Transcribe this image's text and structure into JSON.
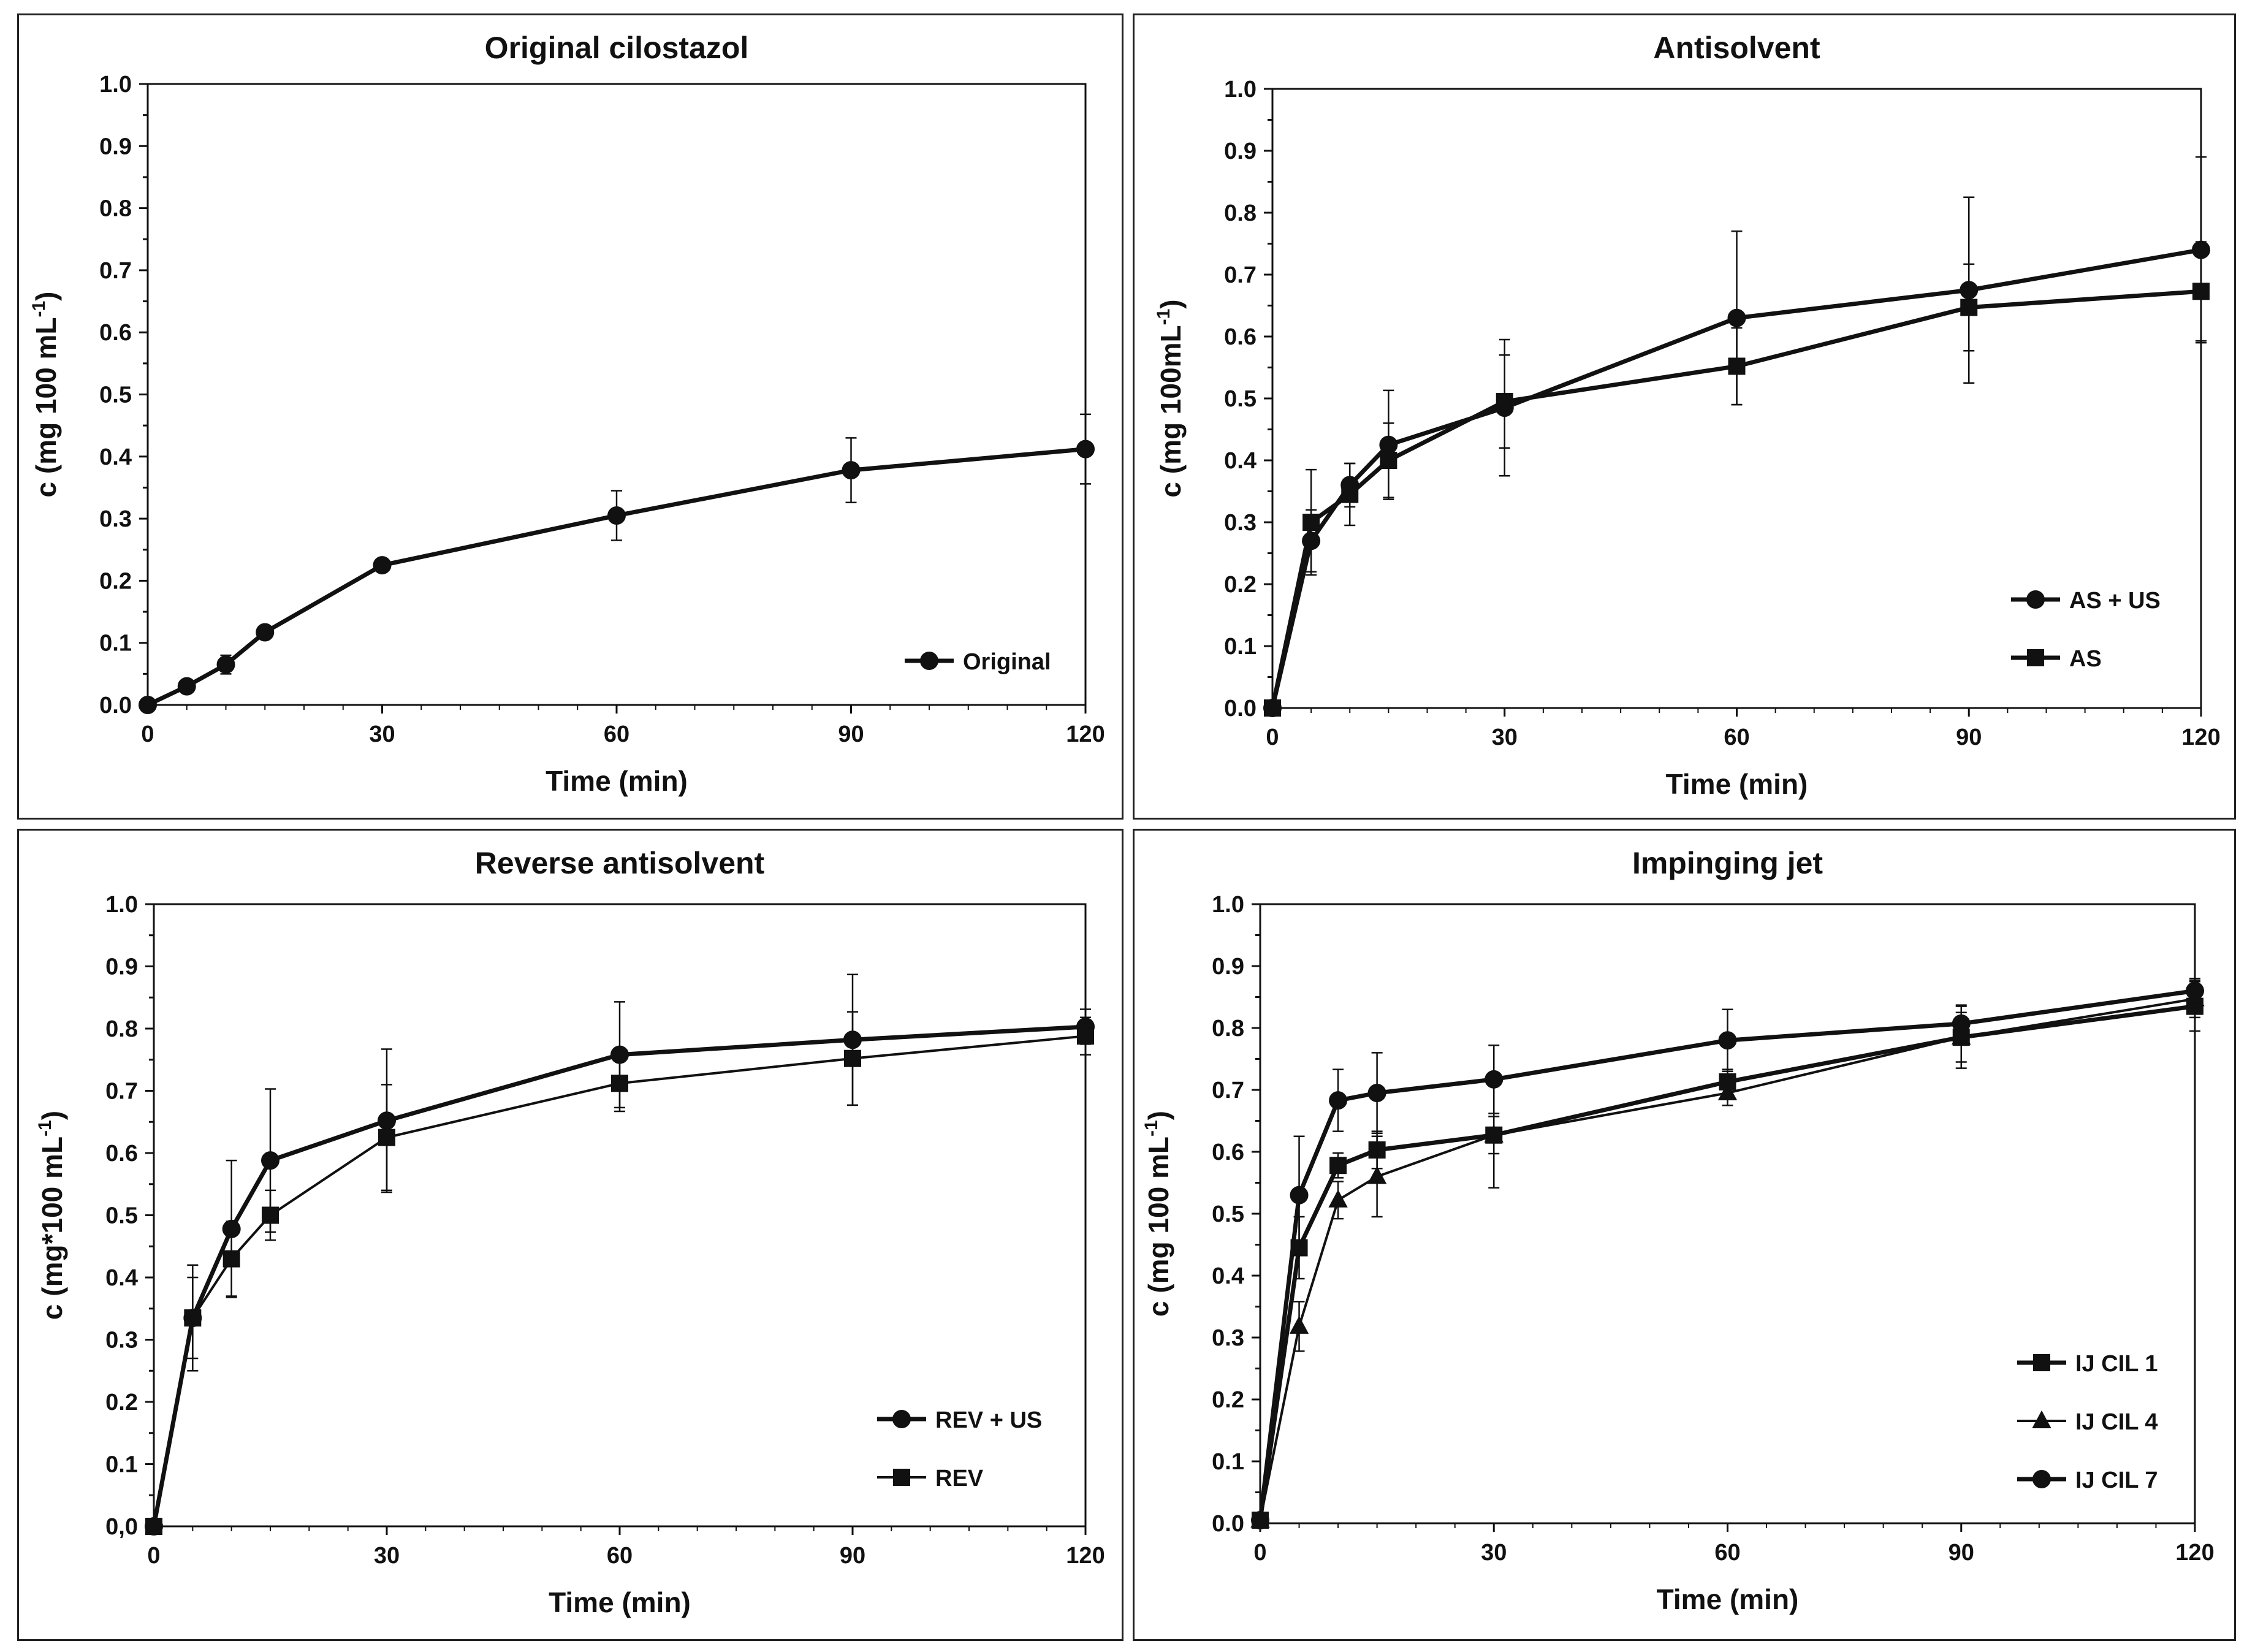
{
  "chart_data": [
    {
      "type": "line",
      "title": "Original cilostazol",
      "xlabel": "Time (min)",
      "ylabel": "c (mg 100 mL",
      "ylabel_sup": "-1",
      "ylabel_close": ")",
      "xlim": [
        0,
        120
      ],
      "ylim": [
        0,
        1.0
      ],
      "xticks": [
        0,
        30,
        60,
        90,
        120
      ],
      "yticks": [
        "0.0",
        "0.1",
        "0.2",
        "0.3",
        "0.4",
        "0.5",
        "0.6",
        "0.7",
        "0.8",
        "0.9",
        "1.0"
      ],
      "legend_position": "bottom-right",
      "series": [
        {
          "name": "Original",
          "marker": "circle",
          "line_width": "thick",
          "x": [
            0,
            5,
            10,
            15,
            30,
            60,
            90,
            120
          ],
          "y": [
            0.0,
            0.03,
            0.065,
            0.117,
            0.225,
            0.305,
            0.378,
            0.412
          ],
          "err": [
            0,
            0.005,
            0.015,
            0.005,
            0.01,
            0.04,
            0.052,
            0.056
          ]
        }
      ]
    },
    {
      "type": "line",
      "title": "Antisolvent",
      "xlabel": "Time (min)",
      "ylabel": "c (mg 100mL",
      "ylabel_sup": "-1",
      "ylabel_close": ")",
      "xlim": [
        0,
        120
      ],
      "ylim": [
        0,
        1.0
      ],
      "xticks": [
        0,
        30,
        60,
        90,
        120
      ],
      "yticks": [
        "0.0",
        "0.1",
        "0.2",
        "0.3",
        "0.4",
        "0.5",
        "0.6",
        "0.7",
        "0.8",
        "0.9",
        "1.0"
      ],
      "legend_position": "bottom-right",
      "series": [
        {
          "name": "AS + US",
          "marker": "circle",
          "line_width": "thick",
          "x": [
            0,
            5,
            10,
            15,
            30,
            60,
            90,
            120
          ],
          "y": [
            0.0,
            0.27,
            0.36,
            0.425,
            0.485,
            0.63,
            0.675,
            0.74
          ],
          "err": [
            0,
            0.05,
            0.035,
            0.088,
            0.11,
            0.14,
            0.15,
            0.15
          ]
        },
        {
          "name": "AS",
          "marker": "square",
          "line_width": "thick",
          "x": [
            0,
            5,
            10,
            15,
            30,
            60,
            90,
            120
          ],
          "y": [
            0.0,
            0.3,
            0.345,
            0.4,
            0.495,
            0.552,
            0.647,
            0.673
          ],
          "err": [
            0,
            0.085,
            0.05,
            0.06,
            0.075,
            0.062,
            0.07,
            0.08
          ]
        }
      ]
    },
    {
      "type": "line",
      "title": "Reverse antisolvent",
      "xlabel": "Time (min)",
      "ylabel": "c (mg*100 mL",
      "ylabel_sup": "-1",
      "ylabel_close": ")",
      "xlim": [
        0,
        120
      ],
      "ylim": [
        0,
        1.0
      ],
      "xticks": [
        0,
        30,
        60,
        90,
        120
      ],
      "yticks": [
        "0,0",
        "0.1",
        "0.2",
        "0.3",
        "0.4",
        "0.5",
        "0.6",
        "0.7",
        "0.8",
        "0.9",
        "1.0"
      ],
      "legend_position": "bottom-right",
      "series": [
        {
          "name": "REV + US",
          "marker": "circle",
          "line_width": "thick",
          "x": [
            0,
            5,
            10,
            15,
            30,
            60,
            90,
            120
          ],
          "y": [
            0.0,
            0.335,
            0.478,
            0.588,
            0.652,
            0.758,
            0.782,
            0.803
          ],
          "err": [
            0,
            0.085,
            0.11,
            0.115,
            0.115,
            0.085,
            0.105,
            0.028
          ]
        },
        {
          "name": "REV",
          "marker": "square",
          "line_width": "thin",
          "x": [
            0,
            5,
            10,
            15,
            30,
            60,
            90,
            120
          ],
          "y": [
            0.0,
            0.335,
            0.43,
            0.5,
            0.625,
            0.712,
            0.752,
            0.788
          ],
          "err": [
            0,
            0.065,
            0.06,
            0.04,
            0.085,
            0.045,
            0.075,
            0.03
          ]
        }
      ]
    },
    {
      "type": "line",
      "title": "Impinging jet",
      "xlabel": "Time (min)",
      "ylabel": "c (mg 100 mL",
      "ylabel_sup": "-1",
      "ylabel_close": ")",
      "xlim": [
        0,
        120
      ],
      "ylim": [
        0,
        1.0
      ],
      "xticks": [
        0,
        30,
        60,
        90,
        120
      ],
      "yticks": [
        "0.0",
        "0.1",
        "0.2",
        "0.3",
        "0.4",
        "0.5",
        "0.6",
        "0.7",
        "0.8",
        "0.9",
        "1.0"
      ],
      "legend_position": "bottom-right",
      "series": [
        {
          "name": "IJ CIL 1",
          "marker": "square",
          "line_width": "thick",
          "x": [
            0,
            5,
            10,
            15,
            30,
            60,
            90,
            120
          ],
          "y": [
            0.005,
            0.445,
            0.578,
            0.603,
            0.627,
            0.713,
            0.785,
            0.835
          ],
          "err": [
            0,
            0.05,
            0.02,
            0.03,
            0.03,
            0.02,
            0.04,
            0.04
          ]
        },
        {
          "name": "IJ CIL 4",
          "marker": "triangle",
          "line_width": "thin",
          "x": [
            0,
            5,
            10,
            15,
            30,
            60,
            90,
            120
          ],
          "y": [
            0.005,
            0.318,
            0.522,
            0.56,
            0.627,
            0.695,
            0.785,
            0.847
          ],
          "err": [
            0,
            0.04,
            0.03,
            0.065,
            0.085,
            0.02,
            0.05,
            0.03
          ]
        },
        {
          "name": "IJ CIL 7",
          "marker": "circle",
          "line_width": "thick",
          "x": [
            0,
            5,
            10,
            15,
            30,
            60,
            90,
            120
          ],
          "y": [
            0.005,
            0.53,
            0.683,
            0.695,
            0.717,
            0.78,
            0.807,
            0.86
          ],
          "err": [
            0,
            0.095,
            0.05,
            0.065,
            0.055,
            0.05,
            0.03,
            0.02
          ]
        }
      ]
    }
  ]
}
